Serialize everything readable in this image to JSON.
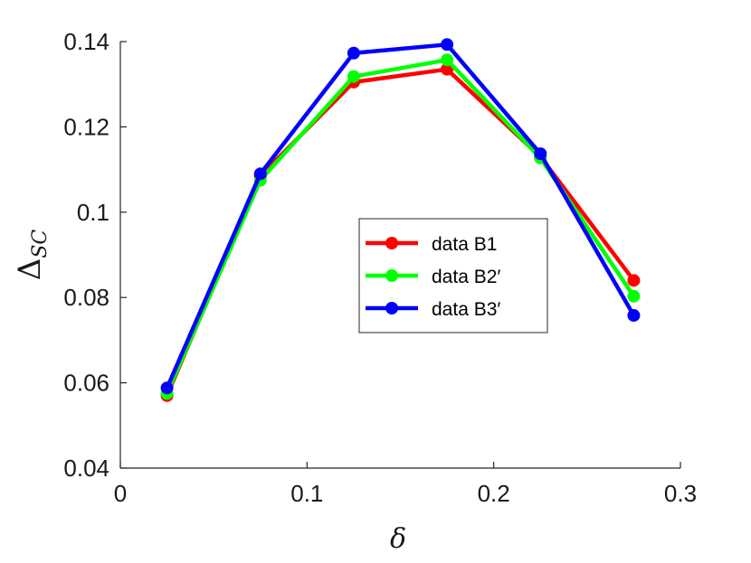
{
  "chart_data": {
    "type": "line",
    "title": "",
    "xlabel": "δ",
    "ylabel": "Δ",
    "ylabel_subscript": "SC",
    "xlim": [
      0,
      0.3
    ],
    "ylim": [
      0.04,
      0.14
    ],
    "xticks": [
      0,
      0.1,
      0.2,
      0.3
    ],
    "xtick_labels": [
      "0",
      "0.1",
      "0.2",
      "0.3"
    ],
    "yticks": [
      0.04,
      0.06,
      0.08,
      0.1,
      0.12,
      0.14
    ],
    "ytick_labels": [
      "0.04",
      "0.06",
      "0.08",
      "0.1",
      "0.12",
      "0.14"
    ],
    "grid": false,
    "legend_position": "center-right",
    "x": [
      0.025,
      0.075,
      0.125,
      0.175,
      0.225,
      0.275
    ],
    "series": [
      {
        "name": "data B1",
        "color": "#ff0000",
        "values": [
          0.057,
          0.1085,
          0.1305,
          0.1335,
          0.113,
          0.084
        ]
      },
      {
        "name": "data B2′",
        "color": "#00ff00",
        "values": [
          0.0575,
          0.1075,
          0.1318,
          0.1357,
          0.1127,
          0.0803
        ]
      },
      {
        "name": "data B3′",
        "color": "#0000ff",
        "values": [
          0.0588,
          0.109,
          0.1373,
          0.1393,
          0.1137,
          0.0758
        ]
      }
    ]
  }
}
